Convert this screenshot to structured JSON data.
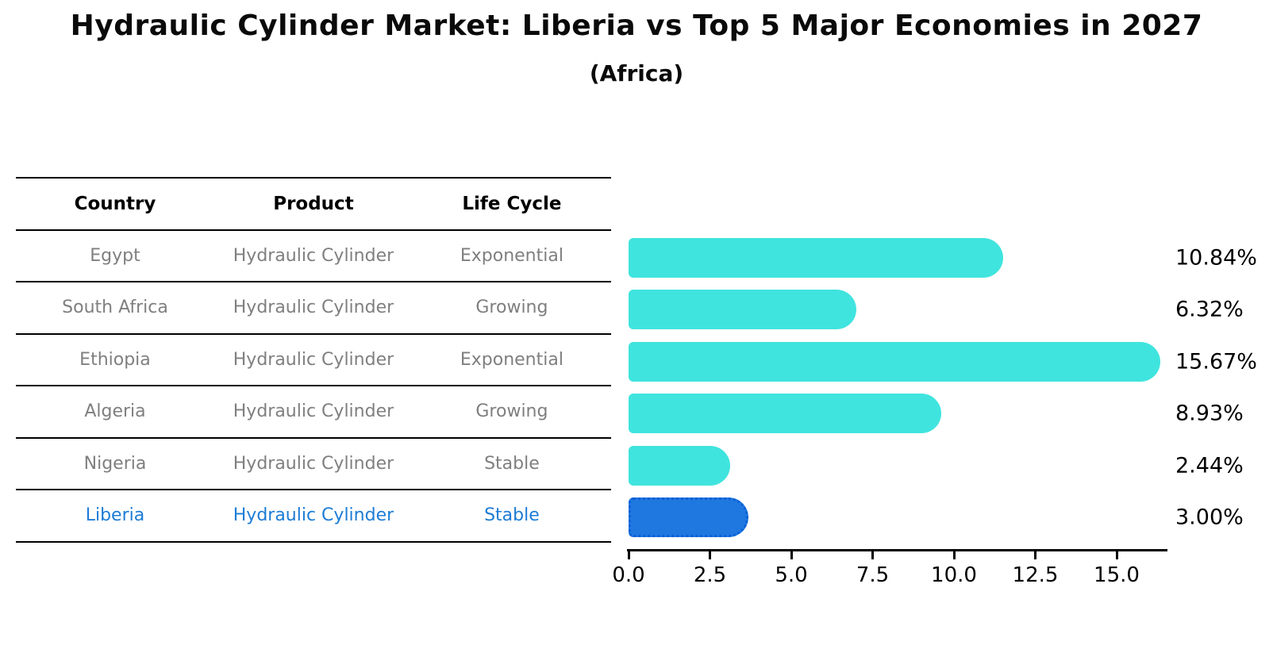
{
  "title": "Hydraulic Cylinder Market: Liberia vs Top 5 Major Economies in 2027",
  "subtitle": "(Africa)",
  "table": {
    "columns": [
      "Country",
      "Product",
      "Life Cycle"
    ],
    "rows": [
      {
        "country": "Egypt",
        "product": "Hydraulic Cylinder",
        "life_cycle": "Exponential"
      },
      {
        "country": "South Africa",
        "product": "Hydraulic Cylinder",
        "life_cycle": "Growing"
      },
      {
        "country": "Ethiopia",
        "product": "Hydraulic Cylinder",
        "life_cycle": "Exponential"
      },
      {
        "country": "Algeria",
        "product": "Hydraulic Cylinder",
        "life_cycle": "Growing"
      },
      {
        "country": "Nigeria",
        "product": "Hydraulic Cylinder",
        "life_cycle": "Stable"
      },
      {
        "country": "Liberia",
        "product": "Hydraulic Cylinder",
        "life_cycle": "Stable"
      }
    ]
  },
  "chart_data": {
    "type": "bar",
    "orientation": "horizontal",
    "title": "Hydraulic Cylinder Market: Liberia vs Top 5 Major Economies in 2027",
    "subtitle": "(Africa)",
    "categories": [
      "Egypt",
      "South Africa",
      "Ethiopia",
      "Algeria",
      "Nigeria",
      "Liberia"
    ],
    "values": [
      10.84,
      6.32,
      15.67,
      8.93,
      2.44,
      3.0
    ],
    "value_labels": [
      "10.84%",
      "6.32%",
      "15.67%",
      "8.93%",
      "2.44%",
      "3.00%"
    ],
    "x_tick_labels": [
      "0.0",
      "2.5",
      "5.0",
      "7.5",
      "10.0",
      "12.5",
      "15.0"
    ],
    "x_tick_values": [
      0,
      2.5,
      5,
      7.5,
      10,
      12.5,
      15
    ],
    "xlim": [
      0,
      16.6
    ],
    "grid": false,
    "legend": false,
    "highlight_index": 5,
    "bar_color": "#40E4DE",
    "highlight_bar_color": "#1E78E0",
    "highlight_border_color": "#0B5FD6",
    "highlight_text_color": "#1C7CD6",
    "row_text_color": "#7F7F7F",
    "axis_color": "#000000"
  }
}
